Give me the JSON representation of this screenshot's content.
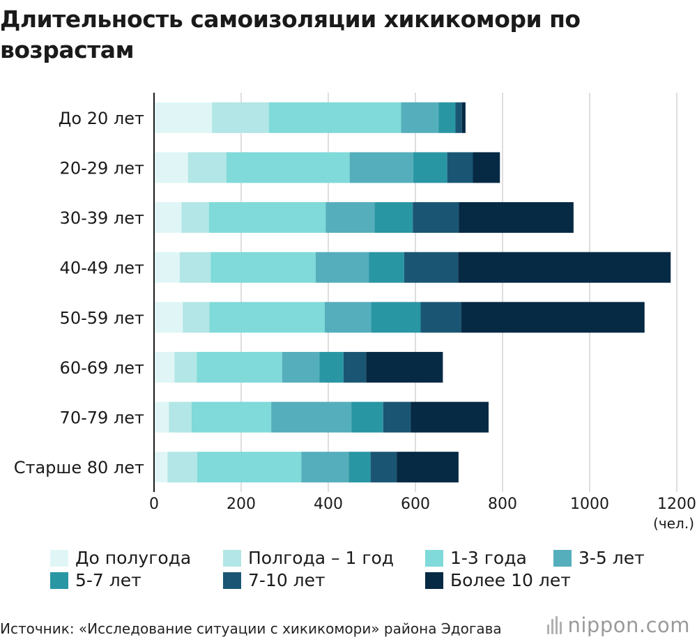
{
  "title": "Длительность самоизоляции хикикомори по возрастам",
  "unit_label": "(чел.)",
  "source": "Источник: «Исследование ситуации с хикикомори» района Эдогава",
  "brand": "nippon.com",
  "chart_data": {
    "type": "bar",
    "orientation": "horizontal",
    "stacked": true,
    "title": "Длительность самоизоляции хикикомори по возрастам",
    "xlabel": "(чел.)",
    "xlim": [
      0,
      1200
    ],
    "xticks": [
      0,
      200,
      400,
      600,
      800,
      1000,
      1200
    ],
    "grid": "vertical",
    "legend_position": "bottom",
    "categories": [
      "До 20 лет",
      "20-29 лет",
      "30-39 лет",
      "40-49 лет",
      "50-59 лет",
      "60-69 лет",
      "70-79 лет",
      "Старше 80 лет"
    ],
    "series": [
      {
        "name": "До полугода",
        "color": "#e0f6f6",
        "values": [
          133,
          78,
          63,
          59,
          66,
          47,
          34,
          31
        ]
      },
      {
        "name": "Полгода – 1 год",
        "color": "#b3e6e6",
        "values": [
          131,
          88,
          63,
          71,
          61,
          51,
          52,
          68
        ]
      },
      {
        "name": "1-3 года",
        "color": "#7fdad9",
        "values": [
          303,
          283,
          268,
          241,
          265,
          196,
          183,
          239
        ]
      },
      {
        "name": "3-5 лет",
        "color": "#55aebb",
        "values": [
          86,
          146,
          112,
          122,
          106,
          86,
          184,
          109
        ]
      },
      {
        "name": "5-7 лет",
        "color": "#2996a4",
        "values": [
          39,
          78,
          88,
          81,
          114,
          55,
          73,
          50
        ]
      },
      {
        "name": "7-10 лет",
        "color": "#1a5673",
        "values": [
          15,
          59,
          106,
          124,
          93,
          52,
          63,
          60
        ]
      },
      {
        "name": "Более 10 лет",
        "color": "#062944",
        "values": [
          8,
          62,
          263,
          488,
          421,
          176,
          179,
          142
        ]
      }
    ]
  }
}
